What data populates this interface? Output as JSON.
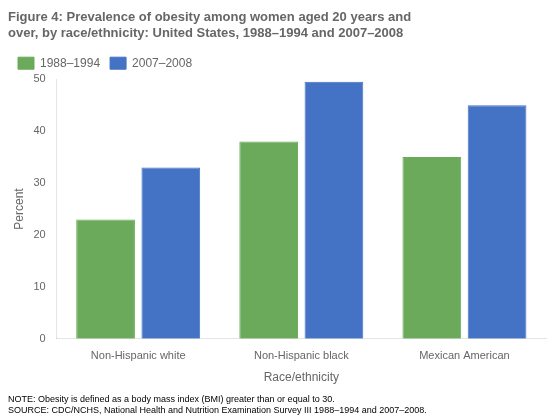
{
  "chart_data": {
    "type": "bar",
    "title": [
      "Figure 4: Prevalence of obesity among women aged 20 years and",
      "over, by race/ethnicity: United States, 1988–1994 and 2007–2008"
    ],
    "categories": [
      "Non-Hispanic white",
      "Non-Hispanic black",
      "Mexican American"
    ],
    "series": [
      {
        "name": "1988–1994",
        "values": [
          23,
          38,
          35
        ],
        "color": "#6aaa5a"
      },
      {
        "name": "2007–2008",
        "values": [
          33,
          49.5,
          45
        ],
        "color": "#4472c4"
      }
    ],
    "xlabel": "Race/ethnicity",
    "ylabel": "Percent",
    "ylim": [
      0,
      50
    ],
    "yticks": [
      0,
      10,
      20,
      30,
      40,
      50
    ],
    "annotations": [
      "NOTE: Obesity is defined as a body mass index (BMI) greater than or equal to 30.",
      "SOURCE: CDC/NCHS, National Health and Nutrition Examination Survey III 1988–1994 and 2007–2008."
    ],
    "legend": "upper left",
    "grid": false
  }
}
